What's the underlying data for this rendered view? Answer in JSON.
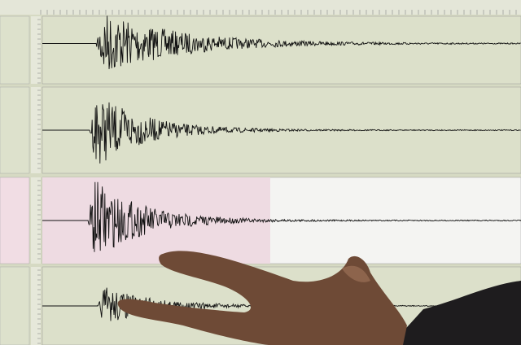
{
  "screen": {
    "panels": [
      {
        "highlighted": false
      },
      {
        "highlighted": false
      },
      {
        "highlighted": true
      },
      {
        "highlighted": false
      }
    ]
  }
}
